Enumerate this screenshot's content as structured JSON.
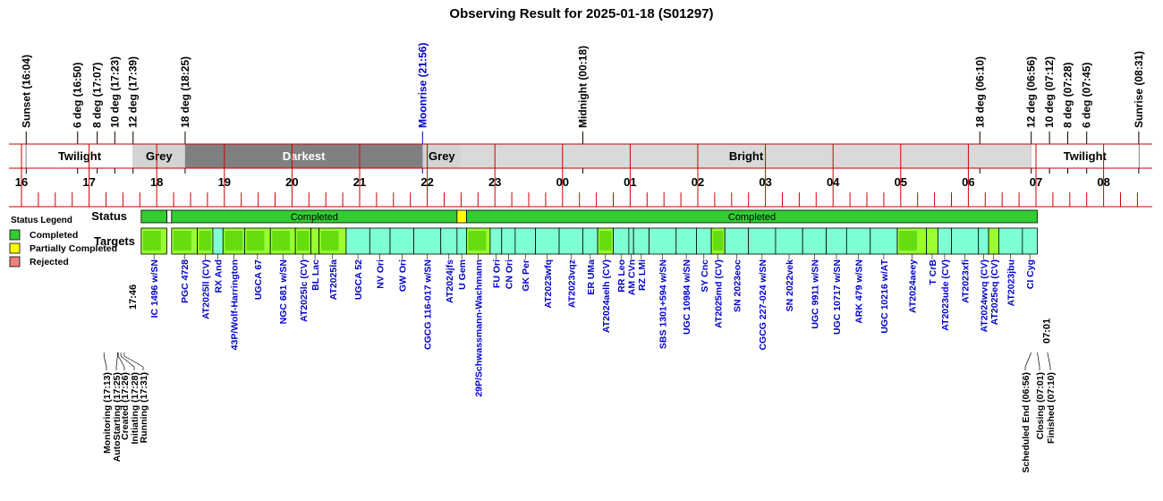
{
  "title": "Observing Result for 2025-01-18 (S01297)",
  "colors": {
    "twilight": "#ffffff",
    "grey": "#d3d3d3",
    "darkest": "#808080",
    "bright": "#d9d9d9",
    "completed": "#33cc33",
    "partial": "#ffff00",
    "rejected": "#f08080",
    "target_completed": "#99ff33",
    "target_aqua": "#7fffd4",
    "link": "#0000cc",
    "axis_red": "#cc0000"
  },
  "chart_data": {
    "type": "timeline",
    "time_range_hours": [
      16,
      32.7
    ],
    "hour_ticks": [
      "16",
      "17",
      "18",
      "19",
      "20",
      "21",
      "22",
      "23",
      "00",
      "01",
      "02",
      "03",
      "04",
      "05",
      "06",
      "07",
      "08"
    ],
    "events_top": [
      {
        "label": "Sunset (16:04)",
        "t": 16.07,
        "color": "black"
      },
      {
        "label": "6 deg (16:50)",
        "t": 16.83,
        "color": "black"
      },
      {
        "label": "8 deg (17:07)",
        "t": 17.12,
        "color": "black"
      },
      {
        "label": "10 deg (17:23)",
        "t": 17.38,
        "color": "black"
      },
      {
        "label": "12 deg (17:39)",
        "t": 17.65,
        "color": "black"
      },
      {
        "label": "18 deg (18:25)",
        "t": 18.42,
        "color": "black"
      },
      {
        "label": "Moonrise (21:56)",
        "t": 21.93,
        "color": "blue"
      },
      {
        "label": "Midnight (00:18)",
        "t": 24.3,
        "color": "black"
      },
      {
        "label": "18 deg (06:10)",
        "t": 30.17,
        "color": "black"
      },
      {
        "label": "12 deg (06:56)",
        "t": 30.93,
        "color": "black"
      },
      {
        "label": "10 deg (07:12)",
        "t": 31.2,
        "color": "black"
      },
      {
        "label": "8 deg (07:28)",
        "t": 31.47,
        "color": "black"
      },
      {
        "label": "6 deg (07:45)",
        "t": 31.75,
        "color": "black"
      },
      {
        "label": "Sunrise (08:31)",
        "t": 32.52,
        "color": "black"
      }
    ],
    "sky_bands": [
      {
        "label": "Twilight",
        "start": 16.07,
        "end": 17.65,
        "kind": "twilight"
      },
      {
        "label": "Grey",
        "start": 17.65,
        "end": 18.42,
        "kind": "grey"
      },
      {
        "label": "Darkest",
        "start": 18.42,
        "end": 21.93,
        "kind": "darkest"
      },
      {
        "label": "Grey",
        "start": 21.93,
        "end": 22.5,
        "kind": "grey"
      },
      {
        "label": "Bright",
        "start": 22.5,
        "end": 30.93,
        "kind": "bright"
      },
      {
        "label": "Twilight",
        "start": 30.93,
        "end": 32.52,
        "kind": "twilight"
      }
    ],
    "status_row_label": "Status",
    "targets_row_label": "Targets",
    "status_segments": [
      {
        "start": 17.77,
        "end": 18.15,
        "status": "completed",
        "label": ""
      },
      {
        "start": 18.15,
        "end": 18.22,
        "status": "empty",
        "label": ""
      },
      {
        "start": 18.22,
        "end": 22.44,
        "status": "completed",
        "label": "Completed"
      },
      {
        "start": 22.44,
        "end": 22.58,
        "status": "partial",
        "label": ""
      },
      {
        "start": 22.58,
        "end": 31.02,
        "status": "completed",
        "label": "Completed"
      }
    ],
    "legend": {
      "title": "Status Legend",
      "items": [
        {
          "label": "Completed",
          "status": "completed"
        },
        {
          "label": "Partially Completed",
          "status": "partial"
        },
        {
          "label": "Rejected",
          "status": "rejected"
        }
      ]
    },
    "start_time_label": "17:46",
    "end_time_label": "07:01",
    "targets": [
      {
        "name": "IC 1496 w/SN",
        "start": 17.77,
        "end": 18.15,
        "done": true
      },
      {
        "name": "PGC 4728",
        "start": 18.22,
        "end": 18.6,
        "done": true
      },
      {
        "name": "AT2025ll (CV)",
        "start": 18.6,
        "end": 18.83,
        "done": true
      },
      {
        "name": "RX And",
        "start": 18.83,
        "end": 18.98,
        "done": false
      },
      {
        "name": "43P/Wolf-Harrington",
        "start": 18.98,
        "end": 19.3,
        "done": true
      },
      {
        "name": "UGCA 67",
        "start": 19.3,
        "end": 19.68,
        "done": true
      },
      {
        "name": "NGC 681 w/SN",
        "start": 19.68,
        "end": 20.05,
        "done": true
      },
      {
        "name": "AT2025lc (CV)",
        "start": 20.05,
        "end": 20.28,
        "done": true
      },
      {
        "name": "BL Lac",
        "start": 20.28,
        "end": 20.4,
        "done": true
      },
      {
        "name": "AT2025la",
        "start": 20.4,
        "end": 20.8,
        "done": true
      },
      {
        "name": "UGCA 52",
        "start": 20.8,
        "end": 21.15,
        "done": false
      },
      {
        "name": "NV Ori",
        "start": 21.15,
        "end": 21.45,
        "done": false
      },
      {
        "name": "GW Ori",
        "start": 21.45,
        "end": 21.8,
        "done": false
      },
      {
        "name": "CGCG 116-017 w/SN",
        "start": 21.8,
        "end": 22.2,
        "done": false
      },
      {
        "name": "AT2024jfs",
        "start": 22.2,
        "end": 22.44,
        "done": false
      },
      {
        "name": "U Gem",
        "start": 22.44,
        "end": 22.58,
        "done": false
      },
      {
        "name": "29P/Schwassmann-Wachmann",
        "start": 22.58,
        "end": 22.93,
        "done": true
      },
      {
        "name": "FU Ori",
        "start": 22.93,
        "end": 23.1,
        "done": false
      },
      {
        "name": "CN Ori",
        "start": 23.1,
        "end": 23.3,
        "done": false
      },
      {
        "name": "GK Per",
        "start": 23.3,
        "end": 23.6,
        "done": false
      },
      {
        "name": "AT2023wfq",
        "start": 23.6,
        "end": 23.95,
        "done": false
      },
      {
        "name": "AT2023vqz",
        "start": 23.95,
        "end": 24.3,
        "done": false
      },
      {
        "name": "ER UMa",
        "start": 24.3,
        "end": 24.52,
        "done": false
      },
      {
        "name": "AT2024aelh (CV)",
        "start": 24.52,
        "end": 24.75,
        "done": true
      },
      {
        "name": "RR Leo",
        "start": 24.75,
        "end": 24.98,
        "done": false
      },
      {
        "name": "AM CVn",
        "start": 24.98,
        "end": 25.05,
        "done": false
      },
      {
        "name": "RZ LMi",
        "start": 25.05,
        "end": 25.28,
        "done": false
      },
      {
        "name": "SBS 1301+594 w/SN",
        "start": 25.28,
        "end": 25.68,
        "done": false
      },
      {
        "name": "UGC 10984 w/SN",
        "start": 25.68,
        "end": 25.98,
        "done": false
      },
      {
        "name": "SY Cnc",
        "start": 25.98,
        "end": 26.2,
        "done": false
      },
      {
        "name": "AT2025md (CV)",
        "start": 26.2,
        "end": 26.4,
        "done": true
      },
      {
        "name": "SN 2023eoc",
        "start": 26.4,
        "end": 26.75,
        "done": false
      },
      {
        "name": "CGCG 227-024 w/SN",
        "start": 26.75,
        "end": 27.15,
        "done": false
      },
      {
        "name": "SN 2022vek",
        "start": 27.15,
        "end": 27.55,
        "done": false
      },
      {
        "name": "UGC 9911 w/SN",
        "start": 27.55,
        "end": 27.9,
        "done": false
      },
      {
        "name": "UGC 10717 w/SN",
        "start": 27.9,
        "end": 28.2,
        "done": false
      },
      {
        "name": "ARK 479 w/SN",
        "start": 28.2,
        "end": 28.55,
        "done": false
      },
      {
        "name": "UGC 10216 w/AT",
        "start": 28.55,
        "end": 28.95,
        "done": false
      },
      {
        "name": "AT2024aeey",
        "start": 28.95,
        "end": 29.38,
        "done": true
      },
      {
        "name": "T CrB",
        "start": 29.38,
        "end": 29.55,
        "done": true
      },
      {
        "name": "AT2023ude (CV)",
        "start": 29.55,
        "end": 29.75,
        "done": false
      },
      {
        "name": "AT2023xfi",
        "start": 29.75,
        "end": 30.15,
        "done": false
      },
      {
        "name": "AT2024wvq (CV)",
        "start": 30.15,
        "end": 30.3,
        "done": false
      },
      {
        "name": "AT2025eq (CV)",
        "start": 30.3,
        "end": 30.45,
        "done": true
      },
      {
        "name": "AT2023jbu",
        "start": 30.45,
        "end": 30.8,
        "done": false
      },
      {
        "name": "CI Cyg",
        "start": 30.8,
        "end": 31.02,
        "done": false
      }
    ],
    "bottom_events_left": [
      {
        "label": "Monitoring (17:13)",
        "t": 17.22
      },
      {
        "label": "AutoStarting (17:25)",
        "t": 17.42
      },
      {
        "label": "Created (17:26)",
        "t": 17.43
      },
      {
        "label": "Initiating (17:28)",
        "t": 17.47
      },
      {
        "label": "Running (17:31)",
        "t": 17.52
      }
    ],
    "bottom_events_right": [
      {
        "label": "Scheduled End (06:56)",
        "t": 30.93
      },
      {
        "label": "Closing (07:01)",
        "t": 31.02
      },
      {
        "label": "Finished (07:10)",
        "t": 31.17
      }
    ]
  }
}
